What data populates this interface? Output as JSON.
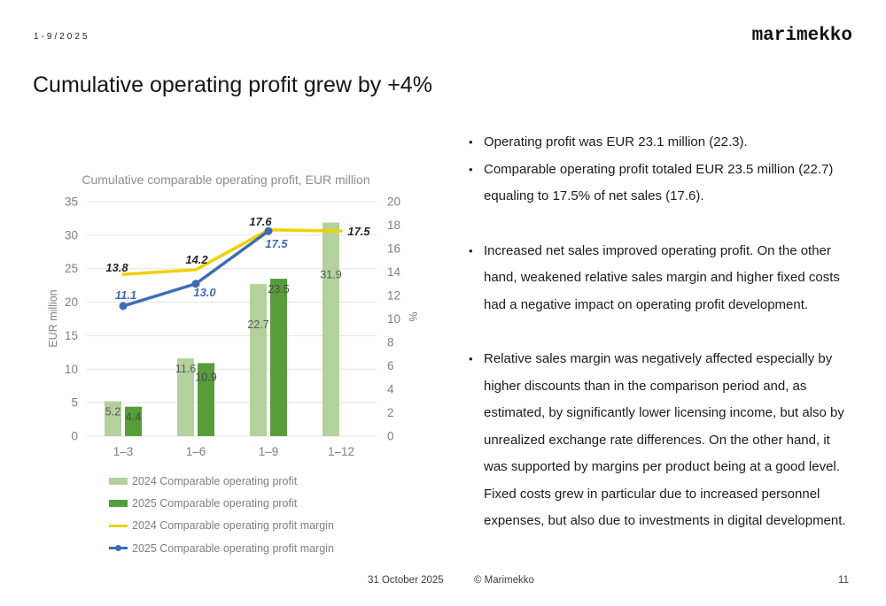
{
  "header": {
    "period": "1-9/2025",
    "logo": "marimekko"
  },
  "title": "Cumulative operating profit grew by +4%",
  "chart_data": {
    "type": "bar+line combo",
    "title": "Cumulative comparable operating profit, EUR million",
    "categories": [
      "1–3",
      "1–6",
      "1–9",
      "1–12"
    ],
    "left_axis": {
      "label": "EUR million",
      "min": 0,
      "max": 35,
      "step": 5
    },
    "right_axis": {
      "label": "%",
      "min": 0,
      "max": 20,
      "step": 2
    },
    "grid": "horizontal",
    "legend_position": "bottom-left",
    "series": [
      {
        "name": "2024 Comparable operating profit",
        "type": "bar",
        "axis": "left",
        "color": "#b3d19c",
        "label_color": "#595959",
        "values": [
          5.2,
          11.6,
          22.7,
          31.9
        ]
      },
      {
        "name": "2025 Comparable operating profit",
        "type": "bar",
        "axis": "left",
        "color": "#579d3a",
        "label_color": "#4a4a4a",
        "values": [
          4.4,
          10.9,
          23.5,
          null
        ]
      },
      {
        "name": "2024 Comparable operating profit margin",
        "type": "line",
        "axis": "right",
        "color": "#f1d000",
        "label_color": "#262626",
        "marker": false,
        "values": [
          13.8,
          14.2,
          17.6,
          17.5
        ]
      },
      {
        "name": "2025 Comparable operating profit margin",
        "type": "line",
        "axis": "right",
        "color": "#3e6cb2",
        "label_color": "#3e6cb2",
        "marker": true,
        "values": [
          11.1,
          13.0,
          17.5,
          null
        ]
      }
    ]
  },
  "bullets": [
    "Operating profit was EUR 23.1 million (22.3).",
    "Comparable operating profit totaled EUR 23.5 million (22.7) equaling to 17.5% of net sales (17.6).",
    "Increased net sales improved operating profit. On the other hand, weakened relative sales margin and higher fixed costs had a negative impact on operating profit development.",
    "Relative sales margin was negatively affected especially by higher discounts than in the comparison period and, as estimated, by significantly lower licensing income, but also by unrealized exchange rate differences. On the other hand, it was supported by margins per product being at a good level. Fixed costs grew in particular due to increased personnel expenses, but also due to investments in digital development."
  ],
  "footer": {
    "date": "31 October 2025",
    "copyright": "© Marimekko",
    "page": "11"
  }
}
